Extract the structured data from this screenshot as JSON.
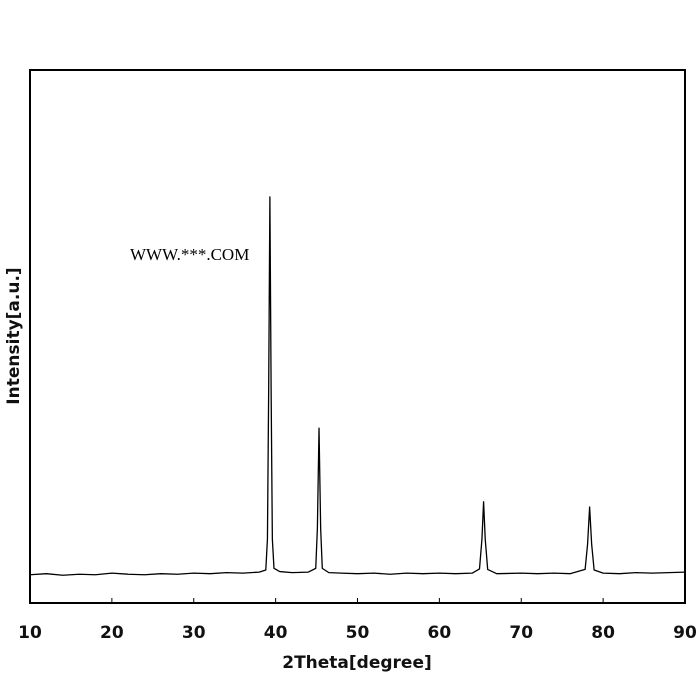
{
  "chart_data": {
    "type": "line",
    "xlabel": "2Theta[degree]",
    "ylabel": "Intensity[a.u.]",
    "annotation": "WWW.***.COM",
    "x": [
      10,
      12,
      14,
      16,
      18,
      20,
      22,
      24,
      26,
      28,
      30,
      32,
      34,
      36,
      38,
      38.8,
      39.0,
      39.15,
      39.3,
      39.45,
      39.6,
      39.8,
      40.5,
      42,
      44,
      44.9,
      45.1,
      45.3,
      45.5,
      45.7,
      46.5,
      48,
      50,
      52,
      54,
      56,
      58,
      60,
      62,
      64,
      64.9,
      65.2,
      65.4,
      65.6,
      65.9,
      67,
      70,
      72,
      74,
      76,
      77.8,
      78.1,
      78.35,
      78.6,
      78.9,
      80,
      82,
      84,
      86,
      88,
      90
    ],
    "series": [
      {
        "name": "Intensity[a.u.]",
        "color": "#000000",
        "values": [
          5.3,
          5.5,
          5.2,
          5.4,
          5.3,
          5.6,
          5.4,
          5.3,
          5.5,
          5.4,
          5.6,
          5.5,
          5.7,
          5.6,
          5.8,
          6.2,
          12,
          40,
          76.2,
          40,
          12,
          6.5,
          5.9,
          5.7,
          5.8,
          6.5,
          14,
          32.8,
          14,
          6.5,
          5.7,
          5.6,
          5.5,
          5.6,
          5.4,
          5.6,
          5.5,
          5.6,
          5.5,
          5.6,
          6.4,
          12,
          19,
          12,
          6.3,
          5.5,
          5.6,
          5.5,
          5.6,
          5.5,
          6.3,
          11,
          18,
          11,
          6.2,
          5.6,
          5.5,
          5.7,
          5.6,
          5.7,
          5.8
        ]
      }
    ],
    "xlim": [
      10,
      90
    ],
    "xticks": [
      10,
      20,
      30,
      40,
      50,
      60,
      70,
      80,
      90
    ],
    "ylim": [
      0,
      100
    ],
    "grid": false
  }
}
